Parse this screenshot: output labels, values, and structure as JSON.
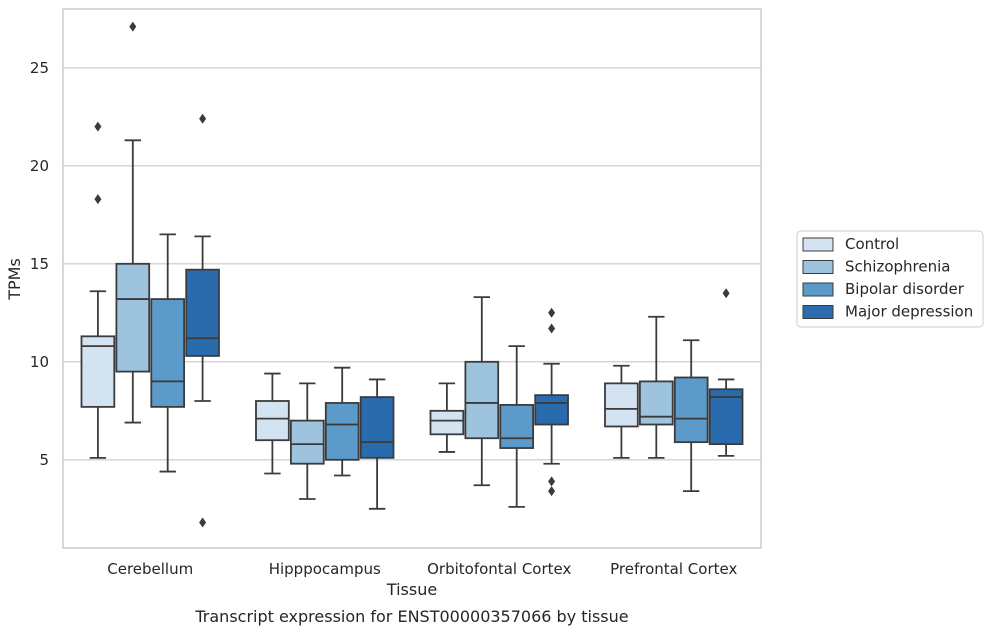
{
  "chart_data": {
    "type": "boxplot",
    "xlabel": "Tissue",
    "ylabel": "TPMs",
    "caption": "Transcript expression for ENST00000357066 by tissue",
    "ylim": [
      0.5,
      28.0
    ],
    "yticks": [
      5,
      10,
      15,
      20,
      25
    ],
    "grid": "horizontal",
    "legend_position": "right",
    "categories": [
      "Cerebellum",
      "Hipppocampus",
      "Orbitofontal Cortex",
      "Prefrontal Cortex"
    ],
    "series": [
      {
        "name": "Control",
        "color": "#d4e3f1",
        "boxes": [
          {
            "whisker_low": 5.1,
            "q1": 7.7,
            "median": 10.8,
            "q3": 11.3,
            "whisker_high": 13.6,
            "outliers": [
              18.3,
              22.0
            ]
          },
          {
            "whisker_low": 4.3,
            "q1": 6.0,
            "median": 7.1,
            "q3": 8.0,
            "whisker_high": 9.4,
            "outliers": []
          },
          {
            "whisker_low": 5.4,
            "q1": 6.3,
            "median": 7.0,
            "q3": 7.5,
            "whisker_high": 8.9,
            "outliers": []
          },
          {
            "whisker_low": 5.1,
            "q1": 6.7,
            "median": 7.6,
            "q3": 8.9,
            "whisker_high": 9.8,
            "outliers": []
          }
        ]
      },
      {
        "name": "Schizophrenia",
        "color": "#9dc3de",
        "boxes": [
          {
            "whisker_low": 6.9,
            "q1": 9.5,
            "median": 13.2,
            "q3": 15.0,
            "whisker_high": 21.3,
            "outliers": [
              27.1
            ]
          },
          {
            "whisker_low": 3.0,
            "q1": 4.8,
            "median": 5.8,
            "q3": 7.0,
            "whisker_high": 8.9,
            "outliers": []
          },
          {
            "whisker_low": 3.7,
            "q1": 6.1,
            "median": 7.9,
            "q3": 10.0,
            "whisker_high": 13.3,
            "outliers": []
          },
          {
            "whisker_low": 5.1,
            "q1": 6.8,
            "median": 7.2,
            "q3": 9.0,
            "whisker_high": 12.3,
            "outliers": []
          }
        ]
      },
      {
        "name": "Bipolar disorder",
        "color": "#5b9ac9",
        "boxes": [
          {
            "whisker_low": 4.4,
            "q1": 7.7,
            "median": 9.0,
            "q3": 13.2,
            "whisker_high": 16.5,
            "outliers": []
          },
          {
            "whisker_low": 4.2,
            "q1": 5.0,
            "median": 6.8,
            "q3": 7.9,
            "whisker_high": 9.7,
            "outliers": []
          },
          {
            "whisker_low": 2.6,
            "q1": 5.6,
            "median": 6.1,
            "q3": 7.8,
            "whisker_high": 10.8,
            "outliers": []
          },
          {
            "whisker_low": 3.4,
            "q1": 5.9,
            "median": 7.1,
            "q3": 9.2,
            "whisker_high": 11.1,
            "outliers": []
          }
        ]
      },
      {
        "name": "Major depression",
        "color": "#2a6bae",
        "boxes": [
          {
            "whisker_low": 8.0,
            "q1": 10.3,
            "median": 11.2,
            "q3": 14.7,
            "whisker_high": 16.4,
            "outliers": [
              1.8,
              22.4
            ]
          },
          {
            "whisker_low": 2.5,
            "q1": 5.1,
            "median": 5.9,
            "q3": 8.2,
            "whisker_high": 9.1,
            "outliers": []
          },
          {
            "whisker_low": 4.8,
            "q1": 6.8,
            "median": 7.9,
            "q3": 8.3,
            "whisker_high": 9.9,
            "outliers": [
              3.4,
              3.9,
              11.7,
              12.5
            ]
          },
          {
            "whisker_low": 5.2,
            "q1": 5.8,
            "median": 8.2,
            "q3": 8.6,
            "whisker_high": 9.1,
            "outliers": [
              13.5
            ]
          }
        ]
      }
    ]
  },
  "colors": {
    "grid": "#d5d5d5",
    "axes_frame": "#cccccc",
    "box_edge": "#3b3b3b"
  }
}
